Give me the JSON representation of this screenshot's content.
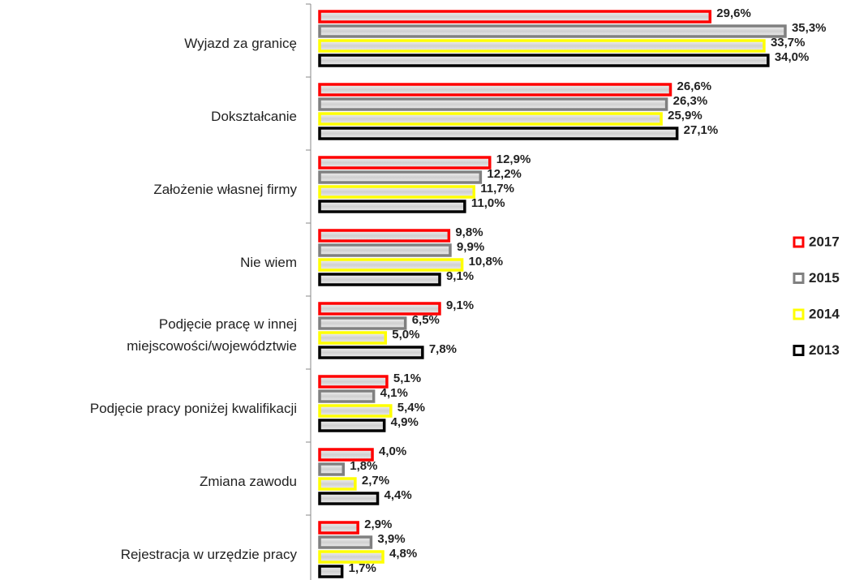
{
  "chart_data": {
    "type": "bar",
    "orientation": "horizontal",
    "categories": [
      "Wyjazd za granicę",
      "Dokształcanie",
      "Założenie własnej firmy",
      "Nie wiem",
      "Podjęcie pracę w innej miejscowości/województwie",
      "Podjęcie pracy poniżej kwalifikacji",
      "Zmiana zawodu",
      "Rejestracja w urzędzie pracy"
    ],
    "series": [
      {
        "name": "2017",
        "color": "#ff0000",
        "values": [
          29.6,
          26.6,
          12.9,
          9.8,
          9.1,
          5.1,
          4.0,
          2.9
        ],
        "value_labels": [
          "29,6%",
          "26,6%",
          "12,9%",
          "9,8%",
          "9,1%",
          "5,1%",
          "4,0%",
          "2,9%"
        ]
      },
      {
        "name": "2015",
        "color": "#808080",
        "values": [
          35.3,
          26.3,
          12.2,
          9.9,
          6.5,
          4.1,
          1.8,
          3.9
        ],
        "value_labels": [
          "35,3%",
          "26,3%",
          "12,2%",
          "9,9%",
          "6,5%",
          "4,1%",
          "1,8%",
          "3,9%"
        ]
      },
      {
        "name": "2014",
        "color": "#ffff00",
        "values": [
          33.7,
          25.9,
          11.7,
          10.8,
          5.0,
          5.4,
          2.7,
          4.8
        ],
        "value_labels": [
          "33,7%",
          "25,9%",
          "11,7%",
          "10,8%",
          "5,0%",
          "5,4%",
          "2,7%",
          "4,8%"
        ]
      },
      {
        "name": "2013",
        "color": "#000000",
        "values": [
          34.0,
          27.1,
          11.0,
          9.1,
          7.8,
          4.9,
          4.4,
          1.7
        ],
        "value_labels": [
          "34,0%",
          "27,1%",
          "11,0%",
          "9,1%",
          "7,8%",
          "4,9%",
          "4,4%",
          "1,7%"
        ]
      }
    ],
    "legend": "right"
  }
}
